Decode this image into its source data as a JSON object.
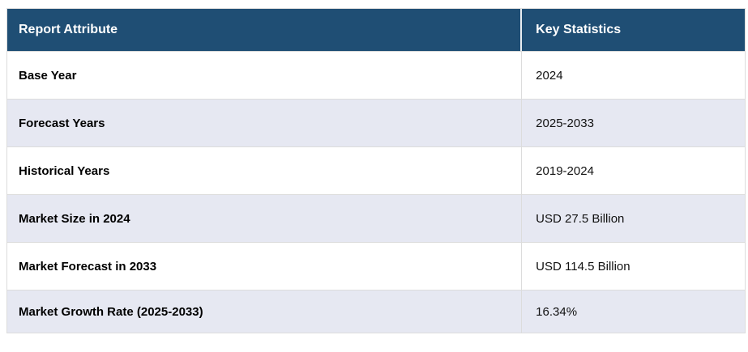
{
  "table": {
    "columns": [
      {
        "label": "Report Attribute"
      },
      {
        "label": "Key Statistics"
      }
    ],
    "rows": [
      {
        "attribute": "Base Year",
        "value": "2024"
      },
      {
        "attribute": "Forecast Years",
        "value": "2025-2033"
      },
      {
        "attribute": "Historical Years",
        "value": "2019-2024"
      },
      {
        "attribute": "Market Size in 2024",
        "value": "USD 27.5 Billion"
      },
      {
        "attribute": "Market Forecast in 2033",
        "value": "USD 114.5 Billion"
      },
      {
        "attribute": "Market Growth Rate (2025-2033)",
        "value": "16.34%"
      }
    ],
    "colors": {
      "header_bg": "#1F4E74",
      "header_text": "#FFFFFF",
      "row_bg": "#FFFFFF",
      "row_alt_bg": "#E6E8F2",
      "border": "#DCDCDC"
    }
  }
}
